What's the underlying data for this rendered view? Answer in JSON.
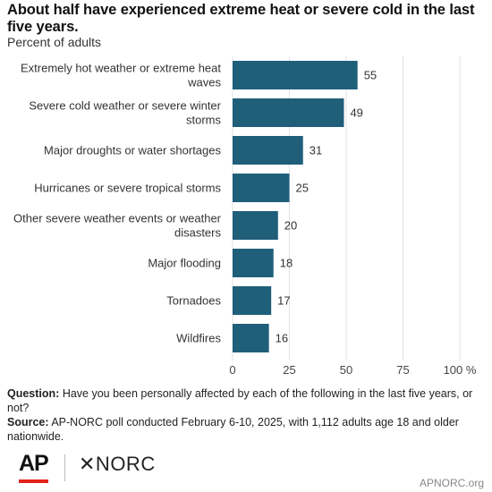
{
  "header": {
    "title": "About half have experienced extreme heat or severe cold in the last five years.",
    "subtitle": "Percent of adults"
  },
  "chart_data": {
    "type": "bar",
    "orientation": "horizontal",
    "categories": [
      [
        "Extremely hot weather or extreme heat",
        "waves"
      ],
      [
        "Severe cold weather or severe winter",
        "storms"
      ],
      [
        "Major droughts or water shortages"
      ],
      [
        "Hurricanes or severe tropical storms"
      ],
      [
        "Other severe weather events or weather",
        "disasters"
      ],
      [
        "Major flooding"
      ],
      [
        "Tornadoes"
      ],
      [
        "Wildfires"
      ]
    ],
    "values": [
      55,
      49,
      31,
      25,
      20,
      18,
      17,
      16
    ],
    "xlim": [
      0,
      100
    ],
    "xticks": [
      "0",
      "25",
      "50",
      "75",
      "100 %"
    ],
    "xtick_values": [
      0,
      25,
      50,
      75,
      100
    ],
    "grid": true,
    "bar_color": "#1f5f7a",
    "grid_color": "#e2e2e2"
  },
  "notes": {
    "question_label": "Question:",
    "question_text": " Have you been personally affected by each of the following in the last five years, or not?",
    "source_label": "Source:",
    "source_text": " AP-NORC poll conducted February 6-10, 2025, with 1,112 adults age 18 and older nationwide."
  },
  "footer": {
    "logo_ap": "AP",
    "logo_norc": "✕NORC",
    "site": "APNORC.org"
  }
}
